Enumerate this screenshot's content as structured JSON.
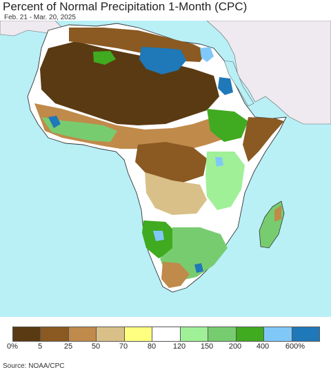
{
  "header": {
    "title": "Percent of Normal Precipitation 1-Month (CPC)",
    "subtitle": "Feb. 21 - Mar. 20, 2025"
  },
  "legend": {
    "colors": [
      "#5a3a12",
      "#8a5a22",
      "#c08a4a",
      "#d8c088",
      "#ffff80",
      "#ffffff",
      "#a0f098",
      "#78cc70",
      "#40aa20",
      "#80c8f8",
      "#1f78b8"
    ],
    "labels": [
      "0%",
      "5",
      "25",
      "50",
      "70",
      "80",
      "120",
      "150",
      "200",
      "400",
      "600%"
    ]
  },
  "footer": {
    "source": "Source: NOAA/CPC"
  },
  "map": {
    "ocean_color": "#b8f0f6",
    "outside_land_color": "#eeeaf0"
  }
}
